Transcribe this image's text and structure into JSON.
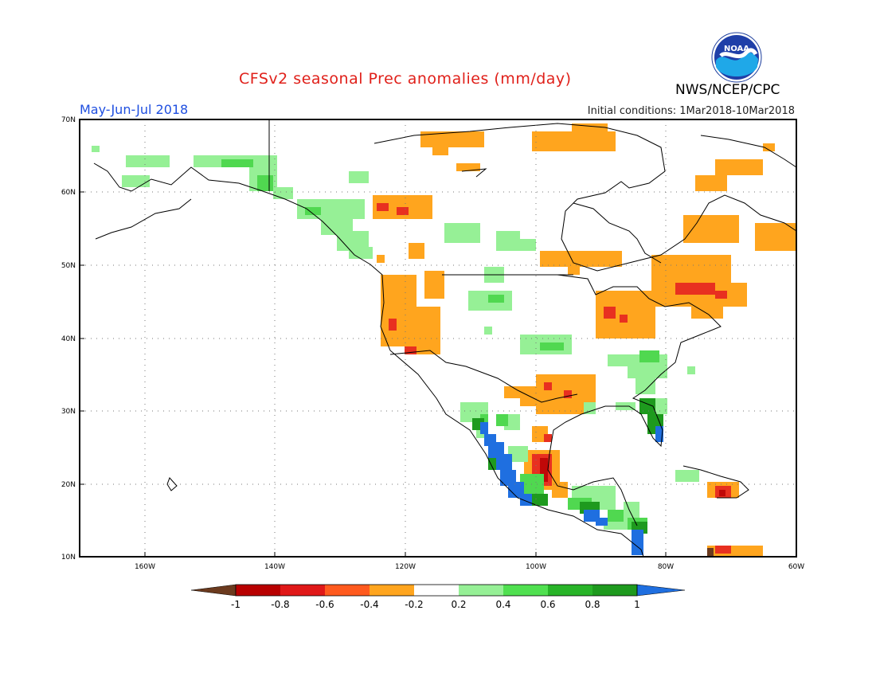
{
  "header": {
    "title": "CFSv2 seasonal Prec anomalies (mm/day)",
    "season": "May-Jun-Jul 2018",
    "initial_conditions": "Initial conditions: 1Mar2018-10Mar2018",
    "agency": "NWS/NCEP/CPC",
    "logo_text": "NOAA"
  },
  "axes": {
    "lat_labels": [
      "70N",
      "60N",
      "50N",
      "40N",
      "30N",
      "20N",
      "10N"
    ],
    "lon_labels": [
      "160W",
      "140W",
      "120W",
      "100W",
      "80W",
      "60W"
    ],
    "lat_range": [
      10,
      70
    ],
    "lon_range": [
      -170,
      -60
    ],
    "grid": "dotted"
  },
  "colorbar": {
    "labels": [
      "-1",
      "-0.8",
      "-0.6",
      "-0.4",
      "-0.2",
      "0.2",
      "0.4",
      "0.6",
      "0.8",
      "1"
    ],
    "colors": [
      "#6b3a1e",
      "#b80000",
      "#e01818",
      "#ff5a1e",
      "#ffa51e",
      "#ffffff",
      "#96f096",
      "#50e050",
      "#28b428",
      "#1e9a1e",
      "#1f6fe0"
    ]
  },
  "legend_colors": {
    "lt_orange": "#ffa51e",
    "red": "#e83020",
    "dark_red": "#c00808",
    "lt_green": "#96f096",
    "green": "#50d850",
    "dk_green": "#1e9a1e",
    "blue": "#1f6fe0",
    "brown": "#6b3a1e"
  }
}
